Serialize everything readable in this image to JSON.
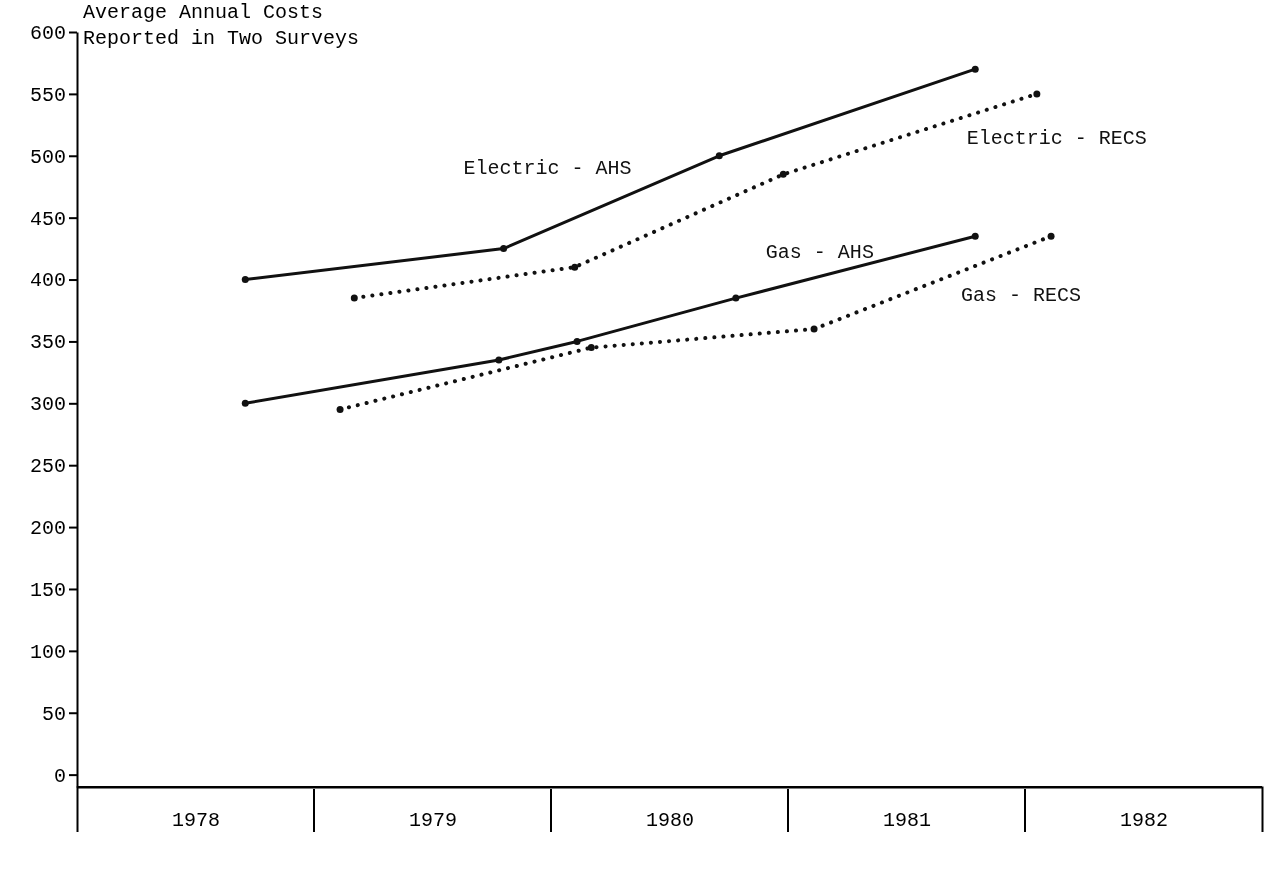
{
  "chart_data": {
    "type": "line",
    "title": "Average Annual Costs\nReported in Two Surveys",
    "xlim": [
      1977.5,
      1982.5
    ],
    "xticks": [
      1978,
      1979,
      1980,
      1981,
      1982
    ],
    "ylim": [
      -10,
      600
    ],
    "yticks": [
      0,
      50,
      100,
      150,
      200,
      250,
      300,
      350,
      400,
      450,
      500,
      550,
      600
    ],
    "grid": false,
    "legend": false,
    "marker": "circle",
    "series": [
      {
        "name": "Electric - AHS",
        "color": "#111111",
        "line_style": "solid",
        "x": [
          1978.21,
          1979.3,
          1980.21,
          1981.29
        ],
        "values": [
          400,
          425,
          500,
          570
        ]
      },
      {
        "name": "Electric - RECS",
        "color": "#111111",
        "line_style": "dotted",
        "x": [
          1978.67,
          1979.6,
          1980.48,
          1981.55
        ],
        "values": [
          385,
          410,
          485,
          550
        ]
      },
      {
        "name": "Gas - AHS",
        "color": "#111111",
        "line_style": "solid",
        "x": [
          1978.21,
          1979.28,
          1979.61,
          1980.28,
          1981.29
        ],
        "values": [
          300,
          335,
          350,
          385,
          435
        ]
      },
      {
        "name": "Gas - RECS",
        "color": "#111111",
        "line_style": "dotted",
        "x": [
          1978.61,
          1979.67,
          1980.61,
          1981.61
        ],
        "values": [
          295,
          345,
          360,
          435
        ]
      }
    ]
  }
}
